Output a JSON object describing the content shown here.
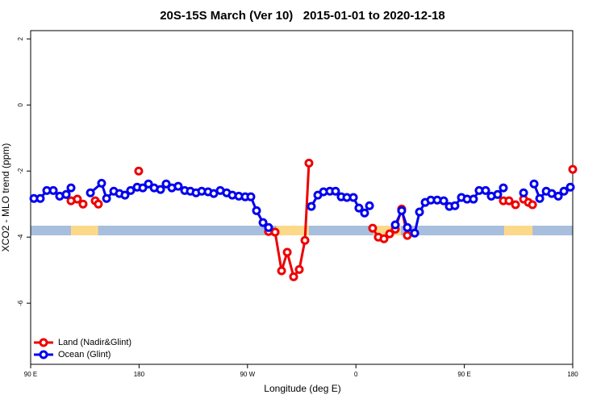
{
  "chart_data": {
    "type": "line",
    "title": "20S-15S March (Ver 10)   2015-01-01 to 2020-12-18",
    "x_label": "Longitude (deg E)",
    "y_label": "XCO2 - MLO trend (ppm)",
    "xlim": [
      90,
      540
    ],
    "xticks": [
      {
        "value": 90,
        "label": "90 E"
      },
      180,
      {
        "value": 270,
        "label": "90 W"
      },
      {
        "value": 360,
        "label": "0"
      },
      {
        "value": 450,
        "label": "90 E"
      },
      {
        "value": 540,
        "label": "180"
      }
    ],
    "ylim": [
      -7.85,
      2.25
    ],
    "yticks": [
      2,
      0,
      -2,
      -4,
      -6
    ],
    "legend": "bottom-left",
    "surface_band": {
      "y": -3.8,
      "ocean_color": "#a8bedd",
      "land_color": "#fcd98a",
      "land_ranges": [
        [
          123.5,
          146
        ],
        [
          294,
          321
        ],
        [
          374.6,
          397.4
        ],
        [
          483,
          506.6
        ]
      ]
    },
    "series": [
      {
        "name": "Land (Nadir&Glint)",
        "color": "#ee0000",
        "x": [
          123.5,
          128.8,
          133.5,
          null,
          143.6,
          146.2,
          null,
          179.7,
          null,
          287.5,
          292.9,
          298.3,
          303,
          308.3,
          313,
          317.7,
          321,
          null,
          373.9,
          378.6,
          383.3,
          388,
          392.7,
          398,
          402.7,
          null,
          482.4,
          487.1,
          492.5,
          null,
          499.2,
          503.2,
          506.6,
          null,
          540
        ],
        "values": [
          -2.9,
          -2.85,
          -3.0,
          null,
          -2.9,
          -3.0,
          null,
          -2.0,
          null,
          -3.83,
          -3.85,
          -5.02,
          -4.46,
          -5.2,
          -4.98,
          -4.1,
          -1.76,
          null,
          -3.73,
          -4.0,
          -4.05,
          -3.9,
          -3.76,
          -3.15,
          -3.95,
          null,
          -2.9,
          -2.9,
          -3.02,
          null,
          -2.85,
          -2.95,
          -3.02,
          null,
          -1.95
        ]
      },
      {
        "name": "Ocean (Glint)",
        "color": "#0000ee",
        "x": [
          92.7,
          98,
          103.4,
          108.8,
          114.1,
          119.5,
          123.5,
          null,
          139.6,
          148.9,
          153,
          159,
          163.7,
          168.3,
          173,
          178.4,
          183.1,
          187.8,
          192.5,
          197.8,
          202.5,
          207.2,
          212.5,
          217.9,
          222.6,
          227.3,
          232,
          237.3,
          242,
          247.4,
          252.7,
          257.4,
          262.8,
          268.1,
          272.8,
          277.5,
          282.9,
          287.5,
          null,
          323,
          328.4,
          333.1,
          338.4,
          343.1,
          347.8,
          352.5,
          357.9,
          362.5,
          367.2,
          371.3,
          null,
          392.7,
          398,
          402.7,
          408.8,
          412.8,
          417.5,
          422.2,
          427.5,
          432.9,
          437.6,
          442.2,
          447.6,
          452.3,
          457.6,
          462.3,
          467.7,
          472.4,
          477.7,
          482.4,
          null,
          499.2,
          null,
          507.9,
          512.6,
          518,
          522.6,
          528,
          532.7,
          538
        ],
        "values": [
          -2.83,
          -2.83,
          -2.59,
          -2.59,
          -2.76,
          -2.71,
          -2.51,
          null,
          -2.66,
          -2.37,
          -2.83,
          -2.61,
          -2.68,
          -2.73,
          -2.59,
          -2.49,
          -2.51,
          -2.39,
          -2.51,
          -2.56,
          -2.39,
          -2.51,
          -2.46,
          -2.59,
          -2.61,
          -2.66,
          -2.61,
          -2.63,
          -2.68,
          -2.59,
          -2.66,
          -2.73,
          -2.76,
          -2.78,
          -2.78,
          -3.2,
          -3.56,
          -3.71,
          null,
          -3.07,
          -2.73,
          -2.63,
          -2.61,
          -2.61,
          -2.78,
          -2.8,
          -2.8,
          -3.12,
          -3.27,
          -3.05,
          null,
          -3.63,
          -3.2,
          -3.71,
          -3.88,
          -3.24,
          -2.95,
          -2.88,
          -2.88,
          -2.9,
          -3.07,
          -3.05,
          -2.8,
          -2.85,
          -2.85,
          -2.59,
          -2.59,
          -2.76,
          -2.71,
          -2.51,
          null,
          -2.66,
          null,
          -2.39,
          -2.83,
          -2.61,
          -2.68,
          -2.76,
          -2.61,
          -2.49
        ]
      }
    ]
  }
}
